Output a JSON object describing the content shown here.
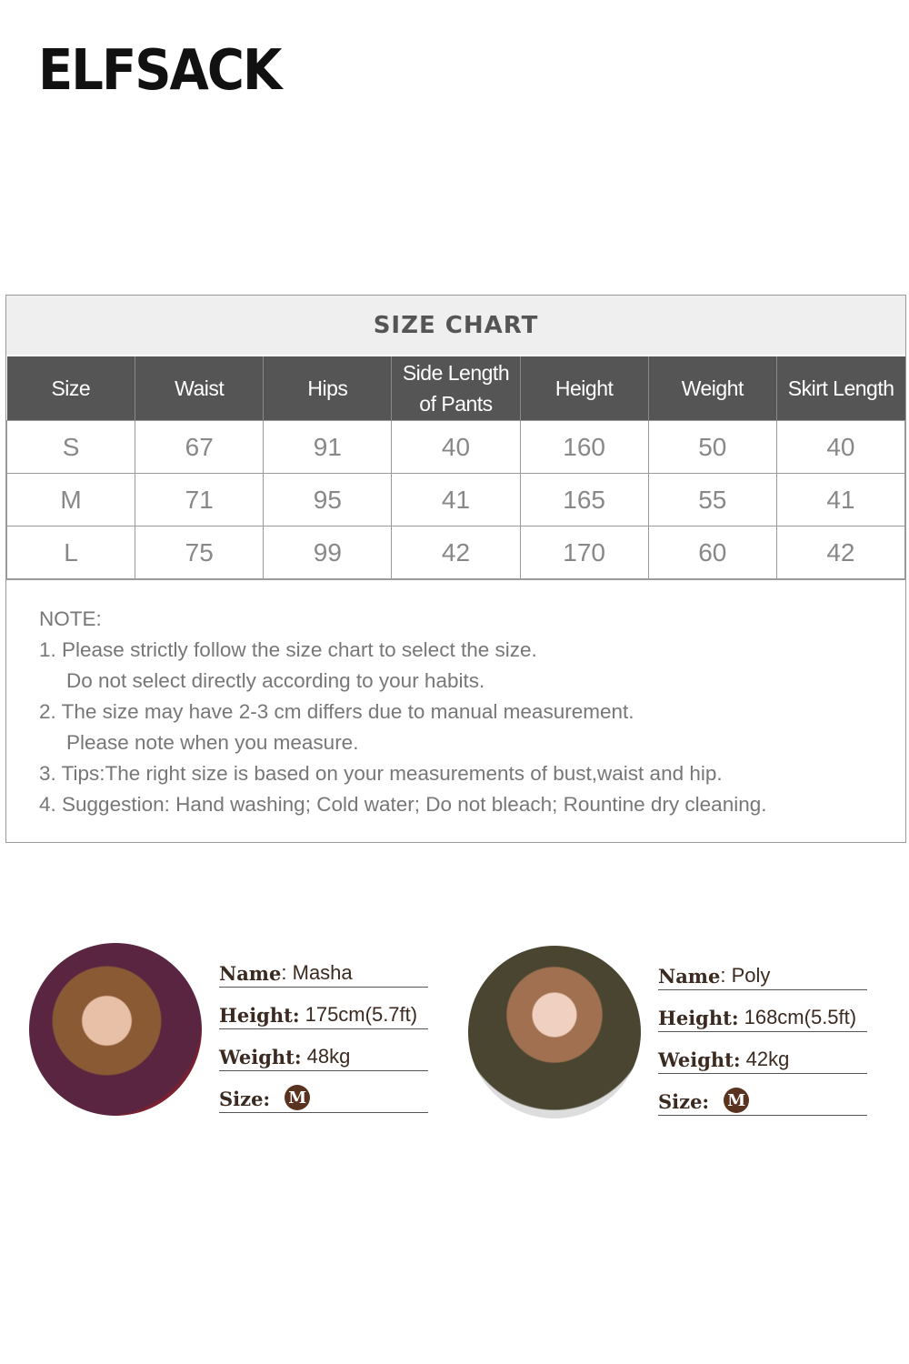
{
  "brand": {
    "logo_text": "ELFSACK"
  },
  "size_chart": {
    "title": "SIZE CHART",
    "headers": [
      "Size",
      "Waist",
      "Hips",
      "Side Length of Pants",
      "Height",
      "Weight",
      "Skirt Length"
    ],
    "rows": [
      [
        "S",
        "67",
        "91",
        "40",
        "160",
        "50",
        "40"
      ],
      [
        "M",
        "71",
        "95",
        "41",
        "165",
        "55",
        "41"
      ],
      [
        "L",
        "75",
        "99",
        "42",
        "170",
        "60",
        "42"
      ]
    ],
    "note_title": "NOTE:",
    "notes": [
      "1. Please strictly follow the size chart to select the size.",
      "Do not select directly according to your habits.",
      "2. The size may have 2-3 cm differs due to manual measurement.",
      "Please note when you measure.",
      "3. Tips:The right size is based on your measurements of bust,waist and hip.",
      "4. Suggestion: Hand washing; Cold water; Do not bleach; Rountine dry cleaning."
    ]
  },
  "models": [
    {
      "name_label": "Name",
      "name": ": Masha",
      "height_label": "Height:",
      "height": "175cm(5.7ft)",
      "weight_label": "Weight:",
      "weight": "48kg",
      "size_label": "Size:",
      "size": "M"
    },
    {
      "name_label": "Name",
      "name": ": Poly",
      "height_label": "Height:",
      "height": "168cm(5.5ft)",
      "weight_label": "Weight:",
      "weight": "42kg",
      "size_label": "Size:",
      "size": "M"
    }
  ],
  "colors": {
    "header_bg": "#555555",
    "title_bg": "#efefef",
    "model_text": "#3b2a20",
    "badge": "#5a3220"
  }
}
